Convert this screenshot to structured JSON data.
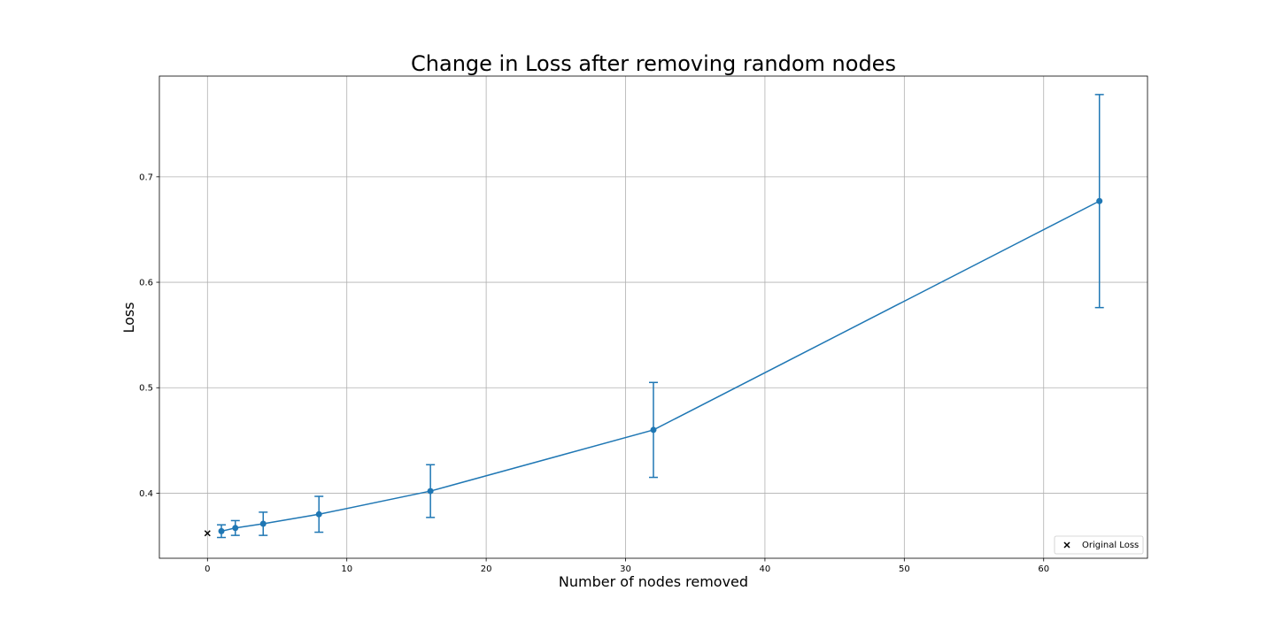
{
  "chart_data": {
    "type": "line",
    "title": "Change in Loss after removing random nodes",
    "xlabel": "Number of nodes removed",
    "ylabel": "Loss",
    "xlim": [
      -3.45,
      67.45
    ],
    "ylim": [
      0.3383,
      0.7955
    ],
    "xticks": [
      0,
      10,
      20,
      30,
      40,
      50,
      60
    ],
    "yticks": [
      0.4,
      0.5,
      0.6,
      0.7
    ],
    "grid": true,
    "legend": {
      "placement": "bottom-right",
      "entries": [
        "Original Loss"
      ]
    },
    "series": [
      {
        "type": "line-errorbar",
        "color": "#1f77b4",
        "x": [
          1,
          2,
          4,
          8,
          16,
          32,
          64
        ],
        "y": [
          0.364,
          0.367,
          0.371,
          0.38,
          0.402,
          0.46,
          0.677
        ],
        "yerr": [
          0.006,
          0.007,
          0.011,
          0.017,
          0.025,
          0.045,
          0.101
        ]
      },
      {
        "name": "Original Loss",
        "type": "scatter",
        "marker": "x",
        "color": "#000000",
        "x": [
          0
        ],
        "y": [
          0.362
        ]
      }
    ]
  }
}
